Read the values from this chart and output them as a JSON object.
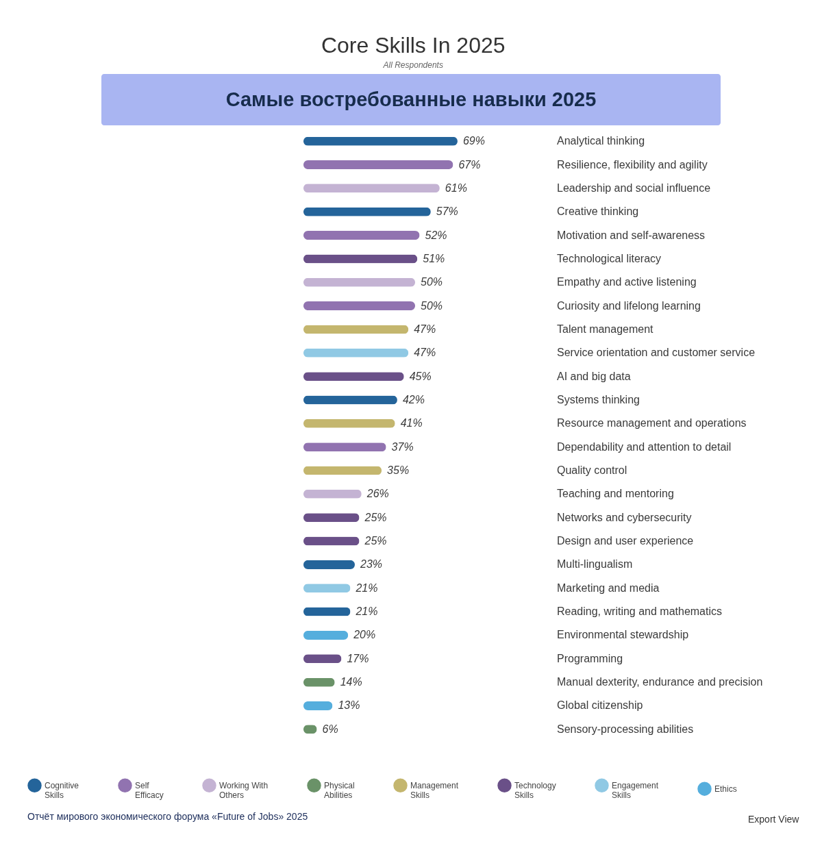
{
  "chart_data": {
    "type": "bar",
    "orientation": "horizontal",
    "title": "Core Skills In 2025",
    "subtitle": "All Respondents",
    "annotations": [
      "Самые востребованные навыки 2025",
      "Отчёт мирового экономического форума «Future of Jobs» 2025",
      "Export View"
    ],
    "categories": [
      "Analytical thinking",
      "Resilience, flexibility and agility",
      "Leadership and social influence",
      "Creative thinking",
      "Motivation and self-awareness",
      "Technological literacy",
      "Empathy and active listening",
      "Curiosity and lifelong learning",
      "Talent management",
      "Service orientation and customer service",
      "AI and big data",
      "Systems thinking",
      "Resource management and operations",
      "Dependability and attention to detail",
      "Quality control",
      "Teaching and mentoring",
      "Networks and cybersecurity",
      "Design and user experience",
      "Multi-lingualism",
      "Marketing and media",
      "Reading, writing and mathematics",
      "Environmental stewardship",
      "Programming",
      "Manual dexterity, endurance and precision",
      "Global citizenship",
      "Sensory-processing abilities"
    ],
    "series": [
      {
        "name": "Cognitive Skills",
        "color": "#24649a",
        "values": [
          69,
          null,
          null,
          57,
          null,
          null,
          null,
          null,
          null,
          null,
          null,
          42,
          null,
          null,
          null,
          null,
          null,
          null,
          23,
          null,
          21,
          null,
          null,
          null,
          null,
          null
        ],
        "value_labels": [
          "69%",
          null,
          null,
          "57%",
          null,
          null,
          null,
          null,
          null,
          null,
          null,
          "42%",
          null,
          null,
          null,
          null,
          null,
          null,
          "23%",
          null,
          "21%",
          null,
          null,
          null,
          null,
          null
        ]
      },
      {
        "name": "Self Efficacy",
        "color": "#9173b0",
        "values": [
          null,
          67,
          null,
          null,
          52,
          null,
          null,
          50,
          null,
          null,
          null,
          null,
          null,
          37,
          null,
          null,
          null,
          null,
          null,
          null,
          null,
          null,
          null,
          null,
          null,
          null
        ],
        "value_labels": [
          null,
          "67%",
          null,
          null,
          "52%",
          null,
          null,
          "50%",
          null,
          null,
          null,
          null,
          null,
          "37%",
          null,
          null,
          null,
          null,
          null,
          null,
          null,
          null,
          null,
          null,
          null,
          null
        ]
      },
      {
        "name": "Working With Others",
        "color": "#c4b3d3",
        "values": [
          null,
          null,
          61,
          null,
          null,
          null,
          50,
          null,
          null,
          null,
          null,
          null,
          null,
          null,
          null,
          26,
          null,
          null,
          null,
          null,
          null,
          null,
          null,
          null,
          null,
          null
        ],
        "value_labels": [
          null,
          null,
          "61%",
          null,
          null,
          null,
          "50%",
          null,
          null,
          null,
          null,
          null,
          null,
          null,
          null,
          "26%",
          null,
          null,
          null,
          null,
          null,
          null,
          null,
          null,
          null,
          null
        ]
      },
      {
        "name": "Physical Abilities",
        "color": "#6a9268",
        "values": [
          null,
          null,
          null,
          null,
          null,
          null,
          null,
          null,
          null,
          null,
          null,
          null,
          null,
          null,
          null,
          null,
          null,
          null,
          null,
          null,
          null,
          null,
          null,
          14,
          null,
          6
        ],
        "value_labels": [
          null,
          null,
          null,
          null,
          null,
          null,
          null,
          null,
          null,
          null,
          null,
          null,
          null,
          null,
          null,
          null,
          null,
          null,
          null,
          null,
          null,
          null,
          null,
          "14%",
          null,
          "6%"
        ]
      },
      {
        "name": "Management Skills",
        "color": "#c4b66e",
        "values": [
          null,
          null,
          null,
          null,
          null,
          null,
          null,
          null,
          47,
          null,
          null,
          null,
          41,
          null,
          35,
          null,
          null,
          null,
          null,
          null,
          null,
          null,
          null,
          null,
          null,
          null
        ],
        "value_labels": [
          null,
          null,
          null,
          null,
          null,
          null,
          null,
          null,
          "47%",
          null,
          null,
          null,
          "41%",
          null,
          "35%",
          null,
          null,
          null,
          null,
          null,
          null,
          null,
          null,
          null,
          null,
          null
        ]
      },
      {
        "name": "Technology Skills",
        "color": "#6a5088",
        "values": [
          null,
          null,
          null,
          null,
          null,
          51,
          null,
          null,
          null,
          null,
          45,
          null,
          null,
          null,
          null,
          null,
          25,
          25,
          null,
          null,
          null,
          null,
          17,
          null,
          null,
          null
        ],
        "value_labels": [
          null,
          null,
          null,
          null,
          null,
          "51%",
          null,
          null,
          null,
          null,
          "45%",
          null,
          null,
          null,
          null,
          null,
          "25%",
          "25%",
          null,
          null,
          null,
          null,
          "17%",
          null,
          null,
          null
        ]
      },
      {
        "name": "Engagement Skills",
        "color": "#90c9e4",
        "values": [
          null,
          null,
          null,
          null,
          null,
          null,
          null,
          null,
          null,
          47,
          null,
          null,
          null,
          null,
          null,
          null,
          null,
          null,
          null,
          21,
          null,
          null,
          null,
          null,
          null,
          null
        ],
        "value_labels": [
          null,
          null,
          null,
          null,
          null,
          null,
          null,
          null,
          null,
          "47%",
          null,
          null,
          null,
          null,
          null,
          null,
          null,
          null,
          null,
          "21%",
          null,
          null,
          null,
          null,
          null,
          null
        ]
      },
      {
        "name": "Ethics",
        "color": "#55aedd",
        "values": [
          null,
          null,
          null,
          null,
          null,
          null,
          null,
          null,
          null,
          null,
          null,
          null,
          null,
          null,
          null,
          null,
          null,
          null,
          null,
          null,
          null,
          20,
          null,
          null,
          13,
          null
        ],
        "value_labels": [
          null,
          null,
          null,
          null,
          null,
          null,
          null,
          null,
          null,
          null,
          null,
          null,
          null,
          null,
          null,
          null,
          null,
          null,
          null,
          null,
          null,
          "20%",
          null,
          null,
          "13%",
          null
        ]
      }
    ],
    "tick_labels": "y",
    "legend": "bottom"
  }
}
